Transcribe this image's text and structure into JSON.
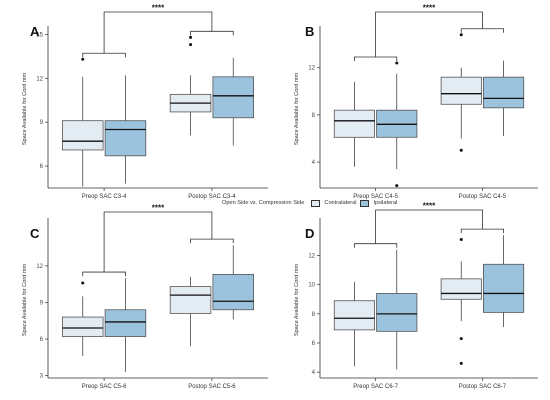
{
  "legend": {
    "title": "Open Side vs. Compression Side",
    "items": [
      {
        "label": "Contralateral",
        "color": "#e3ebf3"
      },
      {
        "label": "Ipsilateral",
        "color": "#9cc3de"
      }
    ]
  },
  "chart_data": [
    {
      "type": "boxplot",
      "panel_label": "A",
      "ylabel": "Space Available for Cord mm",
      "ylim": [
        4.5,
        15.3
      ],
      "yticks": [
        6,
        9,
        12,
        15
      ],
      "categories": [
        "Preop SAC C3-4",
        "Postop SAC C3-4"
      ],
      "significance": "****",
      "boxes": [
        {
          "category": "Preop SAC C3-4",
          "series": "Contralateral",
          "min": 4.6,
          "q1": 7.1,
          "median": 7.7,
          "q3": 9.1,
          "max": 12.1,
          "outliers": [
            13.3
          ]
        },
        {
          "category": "Preop SAC C3-4",
          "series": "Ipsilateral",
          "min": 4.8,
          "q1": 6.7,
          "median": 8.5,
          "q3": 9.1,
          "max": 12.2,
          "outliers": []
        },
        {
          "category": "Postop SAC C3-4",
          "series": "Contralateral",
          "min": 8.1,
          "q1": 9.7,
          "median": 10.3,
          "q3": 10.9,
          "max": 12.2,
          "outliers": [
            14.3,
            14.8
          ]
        },
        {
          "category": "Postop SAC C3-4",
          "series": "Ipsilateral",
          "min": 7.4,
          "q1": 9.3,
          "median": 10.8,
          "q3": 12.1,
          "max": 13.4,
          "outliers": []
        }
      ]
    },
    {
      "type": "boxplot",
      "panel_label": "B",
      "ylabel": "Space Available for Cord mm",
      "ylim": [
        1.8,
        15.2
      ],
      "yticks": [
        4,
        8,
        12
      ],
      "categories": [
        "Preop SAC C4-5",
        "Postop SAC C4-5"
      ],
      "significance": "****",
      "boxes": [
        {
          "category": "Preop SAC C4-5",
          "series": "Contralateral",
          "min": 3.6,
          "q1": 6.1,
          "median": 7.5,
          "q3": 8.4,
          "max": 10.8,
          "outliers": []
        },
        {
          "category": "Preop SAC C4-5",
          "series": "Ipsilateral",
          "min": 3.4,
          "q1": 6.1,
          "median": 7.2,
          "q3": 8.4,
          "max": 11.5,
          "outliers": [
            12.4,
            2.0
          ]
        },
        {
          "category": "Postop SAC C4-5",
          "series": "Contralateral",
          "min": 6.0,
          "q1": 8.9,
          "median": 9.8,
          "q3": 11.2,
          "max": 12.0,
          "outliers": [
            14.8,
            5.0
          ]
        },
        {
          "category": "Postop SAC C4-5",
          "series": "Ipsilateral",
          "min": 6.2,
          "q1": 8.6,
          "median": 9.4,
          "q3": 11.2,
          "max": 12.6,
          "outliers": []
        }
      ]
    },
    {
      "type": "boxplot",
      "panel_label": "C",
      "ylabel": "Space Available for Cord mm",
      "ylim": [
        2.8,
        15.6
      ],
      "yticks": [
        3,
        6,
        9,
        12
      ],
      "categories": [
        "Preop SAC C5-6",
        "Postop SAC C5-6"
      ],
      "significance": "****",
      "boxes": [
        {
          "category": "Preop SAC C5-6",
          "series": "Contralateral",
          "min": 4.6,
          "q1": 6.2,
          "median": 6.9,
          "q3": 7.8,
          "max": 9.5,
          "outliers": [
            10.6
          ]
        },
        {
          "category": "Preop SAC C5-6",
          "series": "Ipsilateral",
          "min": 3.3,
          "q1": 6.2,
          "median": 7.4,
          "q3": 8.4,
          "max": 11.0,
          "outliers": []
        },
        {
          "category": "Postop SAC C5-6",
          "series": "Contralateral",
          "min": 5.4,
          "q1": 8.1,
          "median": 9.6,
          "q3": 10.3,
          "max": 11.1,
          "outliers": []
        },
        {
          "category": "Postop SAC C5-6",
          "series": "Ipsilateral",
          "min": 7.6,
          "q1": 8.4,
          "median": 9.1,
          "q3": 11.3,
          "max": 13.7,
          "outliers": []
        }
      ]
    },
    {
      "type": "boxplot",
      "panel_label": "D",
      "ylabel": "Space Available for Cord mm",
      "ylim": [
        3.6,
        14.3
      ],
      "yticks": [
        4,
        6,
        8,
        10,
        12
      ],
      "categories": [
        "Preop SAC C6-7",
        "Postop SAC C6-7"
      ],
      "significance": "****",
      "boxes": [
        {
          "category": "Preop SAC C6-7",
          "series": "Contralateral",
          "min": 4.4,
          "q1": 6.9,
          "median": 7.7,
          "q3": 8.9,
          "max": 10.2,
          "outliers": []
        },
        {
          "category": "Preop SAC C6-7",
          "series": "Ipsilateral",
          "min": 4.2,
          "q1": 6.8,
          "median": 8.0,
          "q3": 9.4,
          "max": 12.4,
          "outliers": []
        },
        {
          "category": "Postop SAC C6-7",
          "series": "Contralateral",
          "min": 7.5,
          "q1": 9.0,
          "median": 9.4,
          "q3": 10.4,
          "max": 11.6,
          "outliers": [
            13.1,
            6.3,
            4.6
          ]
        },
        {
          "category": "Postop SAC C6-7",
          "series": "Ipsilateral",
          "min": 7.1,
          "q1": 8.1,
          "median": 9.4,
          "q3": 11.4,
          "max": 13.4,
          "outliers": []
        }
      ]
    }
  ]
}
